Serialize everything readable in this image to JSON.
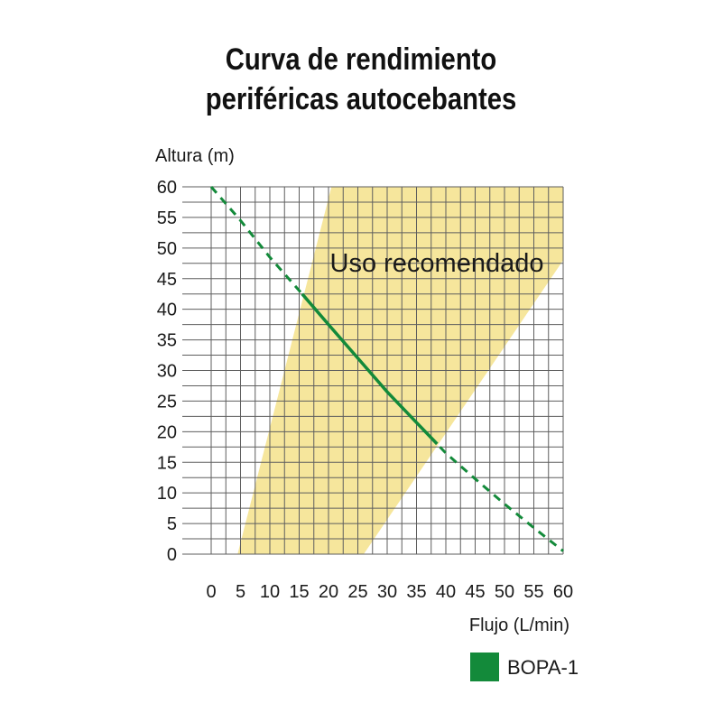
{
  "title_lines": [
    "Curva de rendimiento",
    "periféricas autocebantes"
  ],
  "chart_data": {
    "type": "line",
    "ylabel": "Altura (m)",
    "xlabel": "Flujo (L/min)",
    "xlim": [
      0,
      60
    ],
    "ylim": [
      0,
      60
    ],
    "x_ticks": [
      0,
      5,
      10,
      15,
      20,
      25,
      30,
      35,
      40,
      45,
      50,
      55,
      60
    ],
    "y_ticks": [
      0,
      5,
      10,
      15,
      20,
      25,
      30,
      35,
      40,
      45,
      50,
      55,
      60
    ],
    "grid": true,
    "recommended_region": {
      "label": "Uso recomendado",
      "polygon": [
        [
          4.5,
          0
        ],
        [
          20.5,
          60
        ],
        [
          60,
          60
        ],
        [
          60,
          48
        ],
        [
          26,
          0
        ]
      ],
      "color": "#f6e69c"
    },
    "series": [
      {
        "name": "BOPA-1",
        "color": "#138a3a",
        "x": [
          0,
          5,
          10,
          15.5,
          20,
          25,
          30,
          35,
          38.5,
          40,
          45,
          50,
          55,
          60
        ],
        "y": [
          60,
          54.5,
          48.5,
          42.5,
          37.5,
          32,
          26.5,
          21.5,
          18,
          16.5,
          12.3,
          8.2,
          4.3,
          0.5
        ],
        "solid_range": [
          15.5,
          38.5
        ]
      }
    ],
    "legend": {
      "position": "bottom-right",
      "label": "BOPA-1"
    }
  }
}
